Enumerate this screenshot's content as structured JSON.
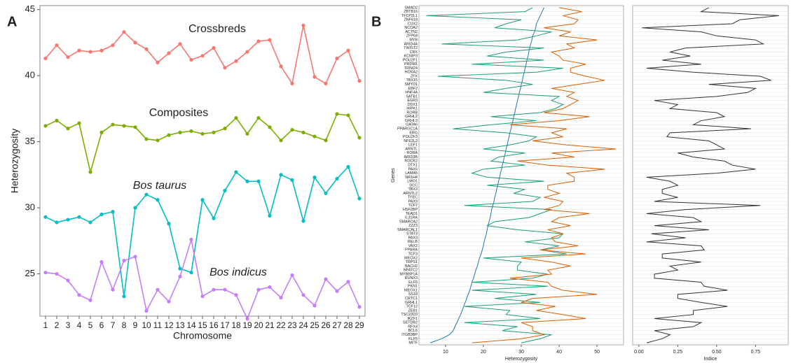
{
  "chart_data": [
    {
      "type": "line",
      "panel_label": "A",
      "x_label": "Chromosome",
      "y_label": "Heterozygosity",
      "categories": [
        "1",
        "2",
        "3",
        "4",
        "5",
        "6",
        "7",
        "8",
        "9",
        "10",
        "11",
        "12",
        "13",
        "14",
        "15",
        "16",
        "17",
        "18",
        "19",
        "20",
        "21",
        "22",
        "23",
        "24",
        "25",
        "26",
        "27",
        "28",
        "29"
      ],
      "ylim": [
        21.8,
        45.3
      ],
      "yticks": [
        25,
        30,
        35,
        40,
        45
      ],
      "series": [
        {
          "name": "Crossbreds",
          "color": "#f8766d",
          "values": [
            41.3,
            42.3,
            41.4,
            41.9,
            41.8,
            41.9,
            42.3,
            43.3,
            42.5,
            42.0,
            41.0,
            41.7,
            42.4,
            41.2,
            41.5,
            42.1,
            40.6,
            41.1,
            41.8,
            42.6,
            42.7,
            40.7,
            39.4,
            43.8,
            39.9,
            39.4,
            41.3,
            41.9,
            39.6
          ]
        },
        {
          "name": "Composites",
          "color": "#7cae00",
          "values": [
            36.2,
            36.6,
            36.0,
            36.4,
            32.7,
            35.7,
            36.3,
            36.2,
            36.1,
            35.2,
            35.1,
            35.5,
            35.7,
            35.8,
            35.6,
            35.7,
            36.0,
            36.8,
            35.6,
            36.8,
            36.1,
            35.1,
            35.9,
            35.7,
            35.4,
            35.1,
            37.1,
            37.0,
            35.3
          ]
        },
        {
          "name": "Bos taurus",
          "color": "#00bfc4",
          "values": [
            29.3,
            28.9,
            29.1,
            29.3,
            28.9,
            29.5,
            29.7,
            23.3,
            30.0,
            31.0,
            30.6,
            28.8,
            25.4,
            25.1,
            30.6,
            29.2,
            31.3,
            32.7,
            32.0,
            32.0,
            29.4,
            32.5,
            32.1,
            29.0,
            32.3,
            31.1,
            32.2,
            33.1,
            30.7
          ]
        },
        {
          "name": "Bos indicus",
          "color": "#c77cff",
          "values": [
            25.1,
            25.0,
            24.5,
            23.4,
            23.0,
            25.9,
            23.8,
            26.0,
            26.3,
            22.2,
            23.8,
            22.9,
            24.8,
            27.6,
            23.3,
            23.8,
            23.8,
            23.4,
            21.6,
            23.8,
            24.0,
            23.2,
            24.9,
            23.4,
            22.6,
            24.6,
            23.7,
            24.4,
            22.5
          ]
        }
      ]
    },
    {
      "type": "hline",
      "panel_label": "B",
      "x_label": "Heterozygosity",
      "y_label": "Genes",
      "categories": [
        "SMAD2",
        "ZBTB16",
        "TFCP2L1",
        "ZNF618",
        "CUX2",
        "NCOA2",
        "ACTN2",
        "ZFP64",
        "MYB",
        "ARID4A",
        "TWIST2",
        "CRX",
        "KCNIP3",
        "POU2F1",
        "PRDM1",
        "TRIM24",
        "HOXA2",
        "ZFX",
        "TBX15",
        "SMYD1",
        "EBF2",
        "HNF4A",
        "SATB1",
        "EGR3",
        "DDX1",
        "HIPK1",
        "RORB",
        "GRHL2",
        "GRHL3",
        "GATA6",
        "PPARGC1A",
        "ERG",
        "POU2F3",
        "NFE2L2",
        "LEF1",
        "ARNTL",
        "RORA",
        "ARID3B",
        "ROCK2",
        "DTX1",
        "PAX6",
        "LAMA5",
        "NR1H4",
        "LMO1",
        "DCC",
        "TBX3",
        "ARNTL2",
        "TFEC",
        "PAX9",
        "TCF7",
        "HSF2BP",
        "TEAD1",
        "IL31RA",
        "SMARCA2",
        "ZZZ3",
        "SMARCAL1",
        "STAT3",
        "PAX3",
        "RELB",
        "VAX2",
        "PPARA",
        "TCF3",
        "MEOX2",
        "TRPS1",
        "BACH2",
        "NFATC2",
        "MYBBP1A",
        "RUNX3",
        "ELF5",
        "PKN1",
        "MEOX1",
        "SS18",
        "CRTC1",
        "GRHL1",
        "TCF12",
        "ZEB1",
        "TSC22D3",
        "IKZF1",
        "SETDB2",
        "RFX4",
        "BCL6",
        "ITGB3BP",
        "KLF5",
        "MITF"
      ],
      "xlim": [
        3,
        57
      ],
      "xticks": [
        10,
        20,
        30,
        40,
        50
      ],
      "grid": true,
      "series": [
        {
          "color": "#1f78b4",
          "values": [
            36,
            35.5,
            35,
            34.5,
            34,
            33.8,
            33.5,
            33,
            32.8,
            32.5,
            32.2,
            32,
            31.8,
            31.5,
            31.3,
            31,
            30.8,
            30.5,
            30.3,
            30,
            29.8,
            29.5,
            29.3,
            29,
            28.8,
            28.5,
            28.3,
            28,
            27.8,
            27.5,
            27.3,
            27,
            26.8,
            26.5,
            26.3,
            26,
            25.8,
            25.5,
            25.3,
            25,
            24.8,
            24.5,
            24.3,
            24,
            23.8,
            23.5,
            23.3,
            23,
            22.8,
            22.5,
            22.2,
            22,
            21.8,
            21.5,
            21.2,
            21,
            20.8,
            20.5,
            20.2,
            20,
            19.7,
            19.4,
            19,
            18.7,
            18.4,
            18,
            17.7,
            17.4,
            17,
            16.7,
            16.4,
            16,
            15.6,
            15.2,
            14.8,
            14.4,
            14,
            13.5,
            13,
            12.5,
            12,
            11,
            9,
            6
          ]
        },
        {
          "color": "#1b9e77",
          "values": [
            33,
            31,
            5,
            30,
            26,
            23,
            38,
            34,
            29,
            9,
            36,
            26,
            21,
            36,
            17,
            41,
            34,
            8,
            26,
            33,
            26,
            20,
            40,
            38,
            41,
            39,
            35,
            22,
            34,
            22,
            12,
            26,
            34,
            32,
            27,
            20,
            31,
            24,
            22,
            31,
            20,
            17,
            21,
            36,
            21,
            31,
            28,
            35,
            33,
            15,
            38,
            35,
            32,
            23,
            21,
            29,
            41,
            40,
            31,
            40,
            35,
            42,
            20,
            30,
            29,
            29,
            37,
            33,
            17,
            37,
            17,
            34,
            23,
            35,
            15,
            27,
            26,
            35,
            15,
            29,
            25,
            38,
            35,
            30
          ]
        },
        {
          "color": "#d95f02",
          "values": [
            40,
            46,
            41,
            45,
            44,
            36,
            43,
            40,
            50,
            42,
            44,
            38,
            40,
            41,
            47,
            43,
            43,
            47,
            52,
            45,
            38,
            44,
            42,
            45,
            43,
            41,
            36,
            48,
            40,
            27,
            42,
            38,
            41,
            33,
            42,
            55,
            38,
            44,
            29,
            37,
            52,
            42,
            44,
            44,
            37,
            37,
            40,
            36,
            41,
            40,
            36,
            48,
            40,
            38,
            43,
            37,
            41,
            38,
            39,
            45,
            35,
            47,
            30,
            38,
            43,
            37,
            38,
            27,
            37,
            38,
            41,
            50,
            33,
            30,
            39,
            34,
            41,
            47,
            30,
            33,
            33,
            36,
            30,
            17
          ]
        }
      ]
    },
    {
      "type": "hline",
      "x_label": "Indice",
      "xlim": [
        -0.04,
        0.96
      ],
      "xticks": [
        {
          "value": 0,
          "label": "0.00"
        },
        0.25,
        {
          "value": 0.5,
          "label": "0.50"
        },
        0.75
      ],
      "grid": true,
      "series": [
        {
          "color": "#333333",
          "values": [
            0.45,
            0.4,
            0.9,
            0.65,
            0.6,
            0.02,
            0.4,
            0.5,
            0.75,
            0.8,
            0.3,
            0.2,
            0.33,
            0.15,
            0.4,
            0.05,
            0.35,
            0.78,
            0.85,
            0.45,
            0.75,
            0.7,
            0.5,
            0.1,
            0.25,
            0.2,
            0.5,
            0.55,
            0.4,
            0.35,
            0.72,
            0.2,
            0.18,
            0.45,
            0.5,
            0.55,
            0.25,
            0.35,
            0.55,
            0.6,
            0.75,
            0.5,
            0.05,
            0.2,
            0.25,
            0.15,
            0.15,
            0.25,
            0.1,
            0.78,
            0.3,
            0.05,
            0.35,
            0.4,
            0.1,
            0.45,
            0.08,
            0.3,
            0.05,
            0.4,
            0.42,
            0.15,
            0.15,
            0.4,
            0.2,
            0.25,
            0.1,
            0.1,
            0.4,
            0.42,
            0.57,
            0.25,
            0.25,
            0.4,
            0.57,
            0.35,
            0.35,
            0.1,
            0.4,
            0.35,
            0.1,
            0.2,
            0.15,
            0.05
          ]
        }
      ]
    }
  ]
}
